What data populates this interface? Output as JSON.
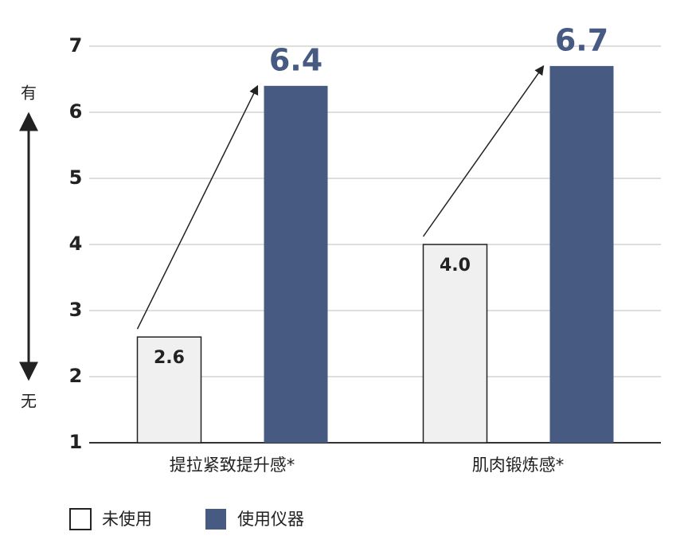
{
  "chart_data": {
    "type": "bar",
    "axis_top_label": "有",
    "axis_bottom_label": "无",
    "categories": [
      "提拉紧致提升感*",
      "肌肉锻炼感*"
    ],
    "series": [
      {
        "name": "未使用",
        "color": "#f0f0f0",
        "values": [
          2.6,
          4.0
        ],
        "value_labels": [
          "2.6",
          "4.0"
        ]
      },
      {
        "name": "使用仪器",
        "color": "#465a82",
        "values": [
          6.4,
          6.7
        ]
      }
    ],
    "ylim": [
      1,
      7
    ],
    "yticks": [
      1,
      2,
      3,
      4,
      5,
      6,
      7
    ],
    "grid": true
  }
}
